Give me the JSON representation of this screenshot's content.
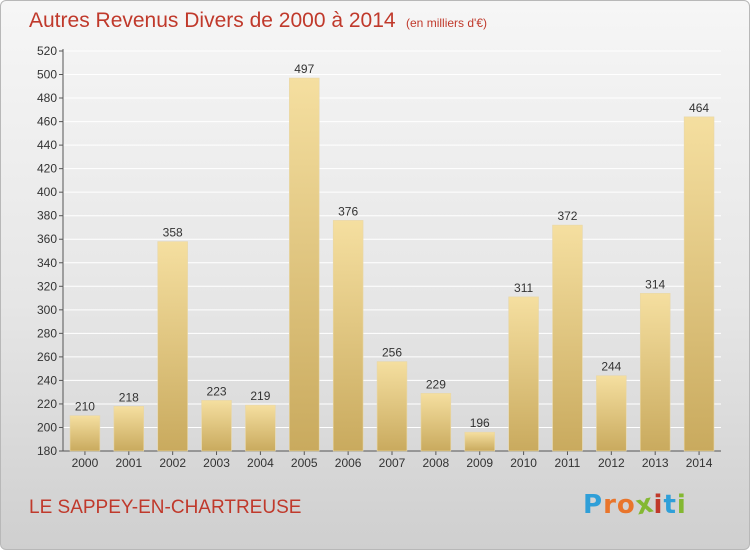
{
  "header": {
    "title": "Autres Revenus Divers de 2000 à 2014",
    "subtitle": "(en milliers d'€)"
  },
  "footer": {
    "commune": "LE SAPPEY-EN-CHARTREUSE",
    "logo": "Proxiti"
  },
  "colors": {
    "title": "#c0392b",
    "bar_light": "#f5dfa0",
    "bar_dark": "#c9aa5e",
    "logo_letters": [
      "#2f9fd8",
      "#e9752b",
      "#e9752b",
      "#84b832",
      "#c0392b",
      "#2f9fd8",
      "#84b832"
    ]
  },
  "chart_data": {
    "type": "bar",
    "categories": [
      "2000",
      "2001",
      "2002",
      "2003",
      "2004",
      "2005",
      "2006",
      "2007",
      "2008",
      "2009",
      "2010",
      "2011",
      "2012",
      "2013",
      "2014"
    ],
    "values": [
      210,
      218,
      358,
      223,
      219,
      497,
      376,
      256,
      229,
      196,
      311,
      372,
      244,
      314,
      464
    ],
    "data_labels": [
      "210",
      "218",
      "358",
      "223",
      "219",
      "497",
      "376",
      "256",
      "229",
      "196",
      "311",
      "372",
      "244",
      "314",
      "464"
    ],
    "y_ticks": [
      "180",
      "200",
      "220",
      "240",
      "260",
      "280",
      "300",
      "320",
      "340",
      "360",
      "380",
      "400",
      "420",
      "440",
      "460",
      "480",
      "500",
      "520"
    ],
    "ylim": [
      180,
      520
    ],
    "grid": true,
    "legend": "none"
  }
}
